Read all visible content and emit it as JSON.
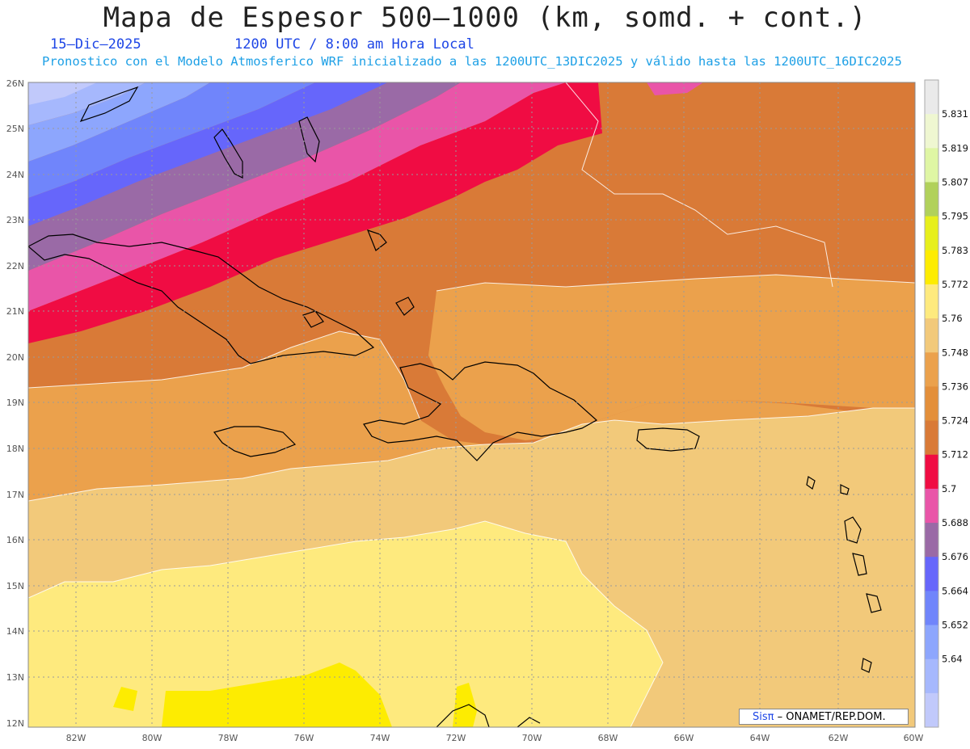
{
  "title": "Mapa de Espesor 500–1000 (km, somd. + cont.)",
  "date": "15–Dic–2025",
  "time": "1200 UTC / 8:00 am Hora Local",
  "forecast_note": "Pronostico con el Modelo Atmosferico WRF inicializado a las 1200UTC_13DIC2025 y válido hasta las  1200UTC_16DIC2025",
  "credit": {
    "brand": "Sisπ",
    "text": " – ONAMET/REP.DOM."
  },
  "map": {
    "lon_range": [
      -83.2,
      -60
    ],
    "lat_range": [
      12,
      26
    ],
    "lon_ticks": [
      "82W",
      "80W",
      "78W",
      "76W",
      "74W",
      "72W",
      "70W",
      "68W",
      "66W",
      "64W",
      "62W",
      "60W"
    ],
    "lat_ticks": [
      "12N",
      "13N",
      "14N",
      "15N",
      "16N",
      "17N",
      "18N",
      "19N",
      "20N",
      "21N",
      "22N",
      "23N",
      "24N",
      "25N",
      "26N"
    ]
  },
  "colorbar": {
    "labels": [
      "5.64",
      "5.652",
      "5.664",
      "5.676",
      "5.688",
      "5.7",
      "5.712",
      "5.724",
      "5.736",
      "5.748",
      "5.76",
      "5.772",
      "5.783",
      "5.795",
      "5.807",
      "5.819",
      "5.831"
    ],
    "colors": [
      "#c1c9fb",
      "#a6b8fd",
      "#8da6fd",
      "#7085fb",
      "#6666fb",
      "#9a6aa6",
      "#e955a8",
      "#f00c43",
      "#d97a37",
      "#e38f3a",
      "#eba14c",
      "#f2c97a",
      "#feea7e",
      "#fdec01",
      "#e7ef1c",
      "#b1d15b",
      "#dff6a4",
      "#eff7d1",
      "#eaeaea"
    ]
  }
}
